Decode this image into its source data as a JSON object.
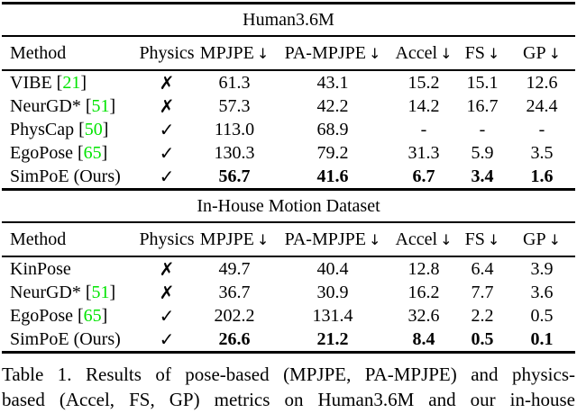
{
  "colors": {
    "citation_green": "#00e400",
    "text": "#000000",
    "background": "#ffffff",
    "rule": "#000000"
  },
  "icons": {
    "check": "✓",
    "cross": "✗",
    "down_arrow": "↓"
  },
  "tables": [
    {
      "title": "Human3.6M",
      "columns": [
        {
          "label": "Method",
          "arrow": false
        },
        {
          "label": "Physics",
          "arrow": false
        },
        {
          "label": "MPJPE",
          "arrow": true
        },
        {
          "label": "PA-MPJPE",
          "arrow": true
        },
        {
          "label": "Accel",
          "arrow": true
        },
        {
          "label": "FS",
          "arrow": true
        },
        {
          "label": "GP",
          "arrow": true
        }
      ],
      "rows": [
        {
          "method": "VIBE",
          "cite": "21",
          "physics": "cross",
          "values": [
            "61.3",
            "43.1",
            "15.2",
            "15.1",
            "12.6"
          ],
          "bold": false
        },
        {
          "method": "NeurGD*",
          "cite": "51",
          "physics": "cross",
          "values": [
            "57.3",
            "42.2",
            "14.2",
            "16.7",
            "24.4"
          ],
          "bold": false
        },
        {
          "method": "PhysCap",
          "cite": "50",
          "physics": "check",
          "values": [
            "113.0",
            "68.9",
            "-",
            "-",
            "-"
          ],
          "bold": false
        },
        {
          "method": "EgoPose",
          "cite": "65",
          "physics": "check",
          "values": [
            "130.3",
            "79.2",
            "31.3",
            "5.9",
            "3.5"
          ],
          "bold": false
        },
        {
          "method": "SimPoE (Ours)",
          "cite": null,
          "physics": "check",
          "values": [
            "56.7",
            "41.6",
            "6.7",
            "3.4",
            "1.6"
          ],
          "bold": true
        }
      ]
    },
    {
      "title": "In-House Motion Dataset",
      "columns": [
        {
          "label": "Method",
          "arrow": false
        },
        {
          "label": "Physics",
          "arrow": false
        },
        {
          "label": "MPJPE",
          "arrow": true
        },
        {
          "label": "PA-MPJPE",
          "arrow": true
        },
        {
          "label": "Accel",
          "arrow": true
        },
        {
          "label": "FS",
          "arrow": true
        },
        {
          "label": "GP",
          "arrow": true
        }
      ],
      "rows": [
        {
          "method": "KinPose",
          "cite": null,
          "physics": "cross",
          "values": [
            "49.7",
            "40.4",
            "12.8",
            "6.4",
            "3.9"
          ],
          "bold": false
        },
        {
          "method": "NeurGD*",
          "cite": "51",
          "physics": "cross",
          "values": [
            "36.7",
            "30.9",
            "16.2",
            "7.7",
            "3.6"
          ],
          "bold": false
        },
        {
          "method": "EgoPose",
          "cite": "65",
          "physics": "check",
          "values": [
            "202.2",
            "131.4",
            "32.6",
            "2.2",
            "0.5"
          ],
          "bold": false
        },
        {
          "method": "SimPoE (Ours)",
          "cite": null,
          "physics": "check",
          "values": [
            "26.6",
            "21.2",
            "8.4",
            "0.5",
            "0.1"
          ],
          "bold": true
        }
      ]
    }
  ],
  "caption": {
    "line1": "Table 1. Results of pose-based (MPJPE, PA-MPJPE) and physics-",
    "line2": "based (Accel, FS, GP) metrics on Human3.6M and our in-house"
  }
}
